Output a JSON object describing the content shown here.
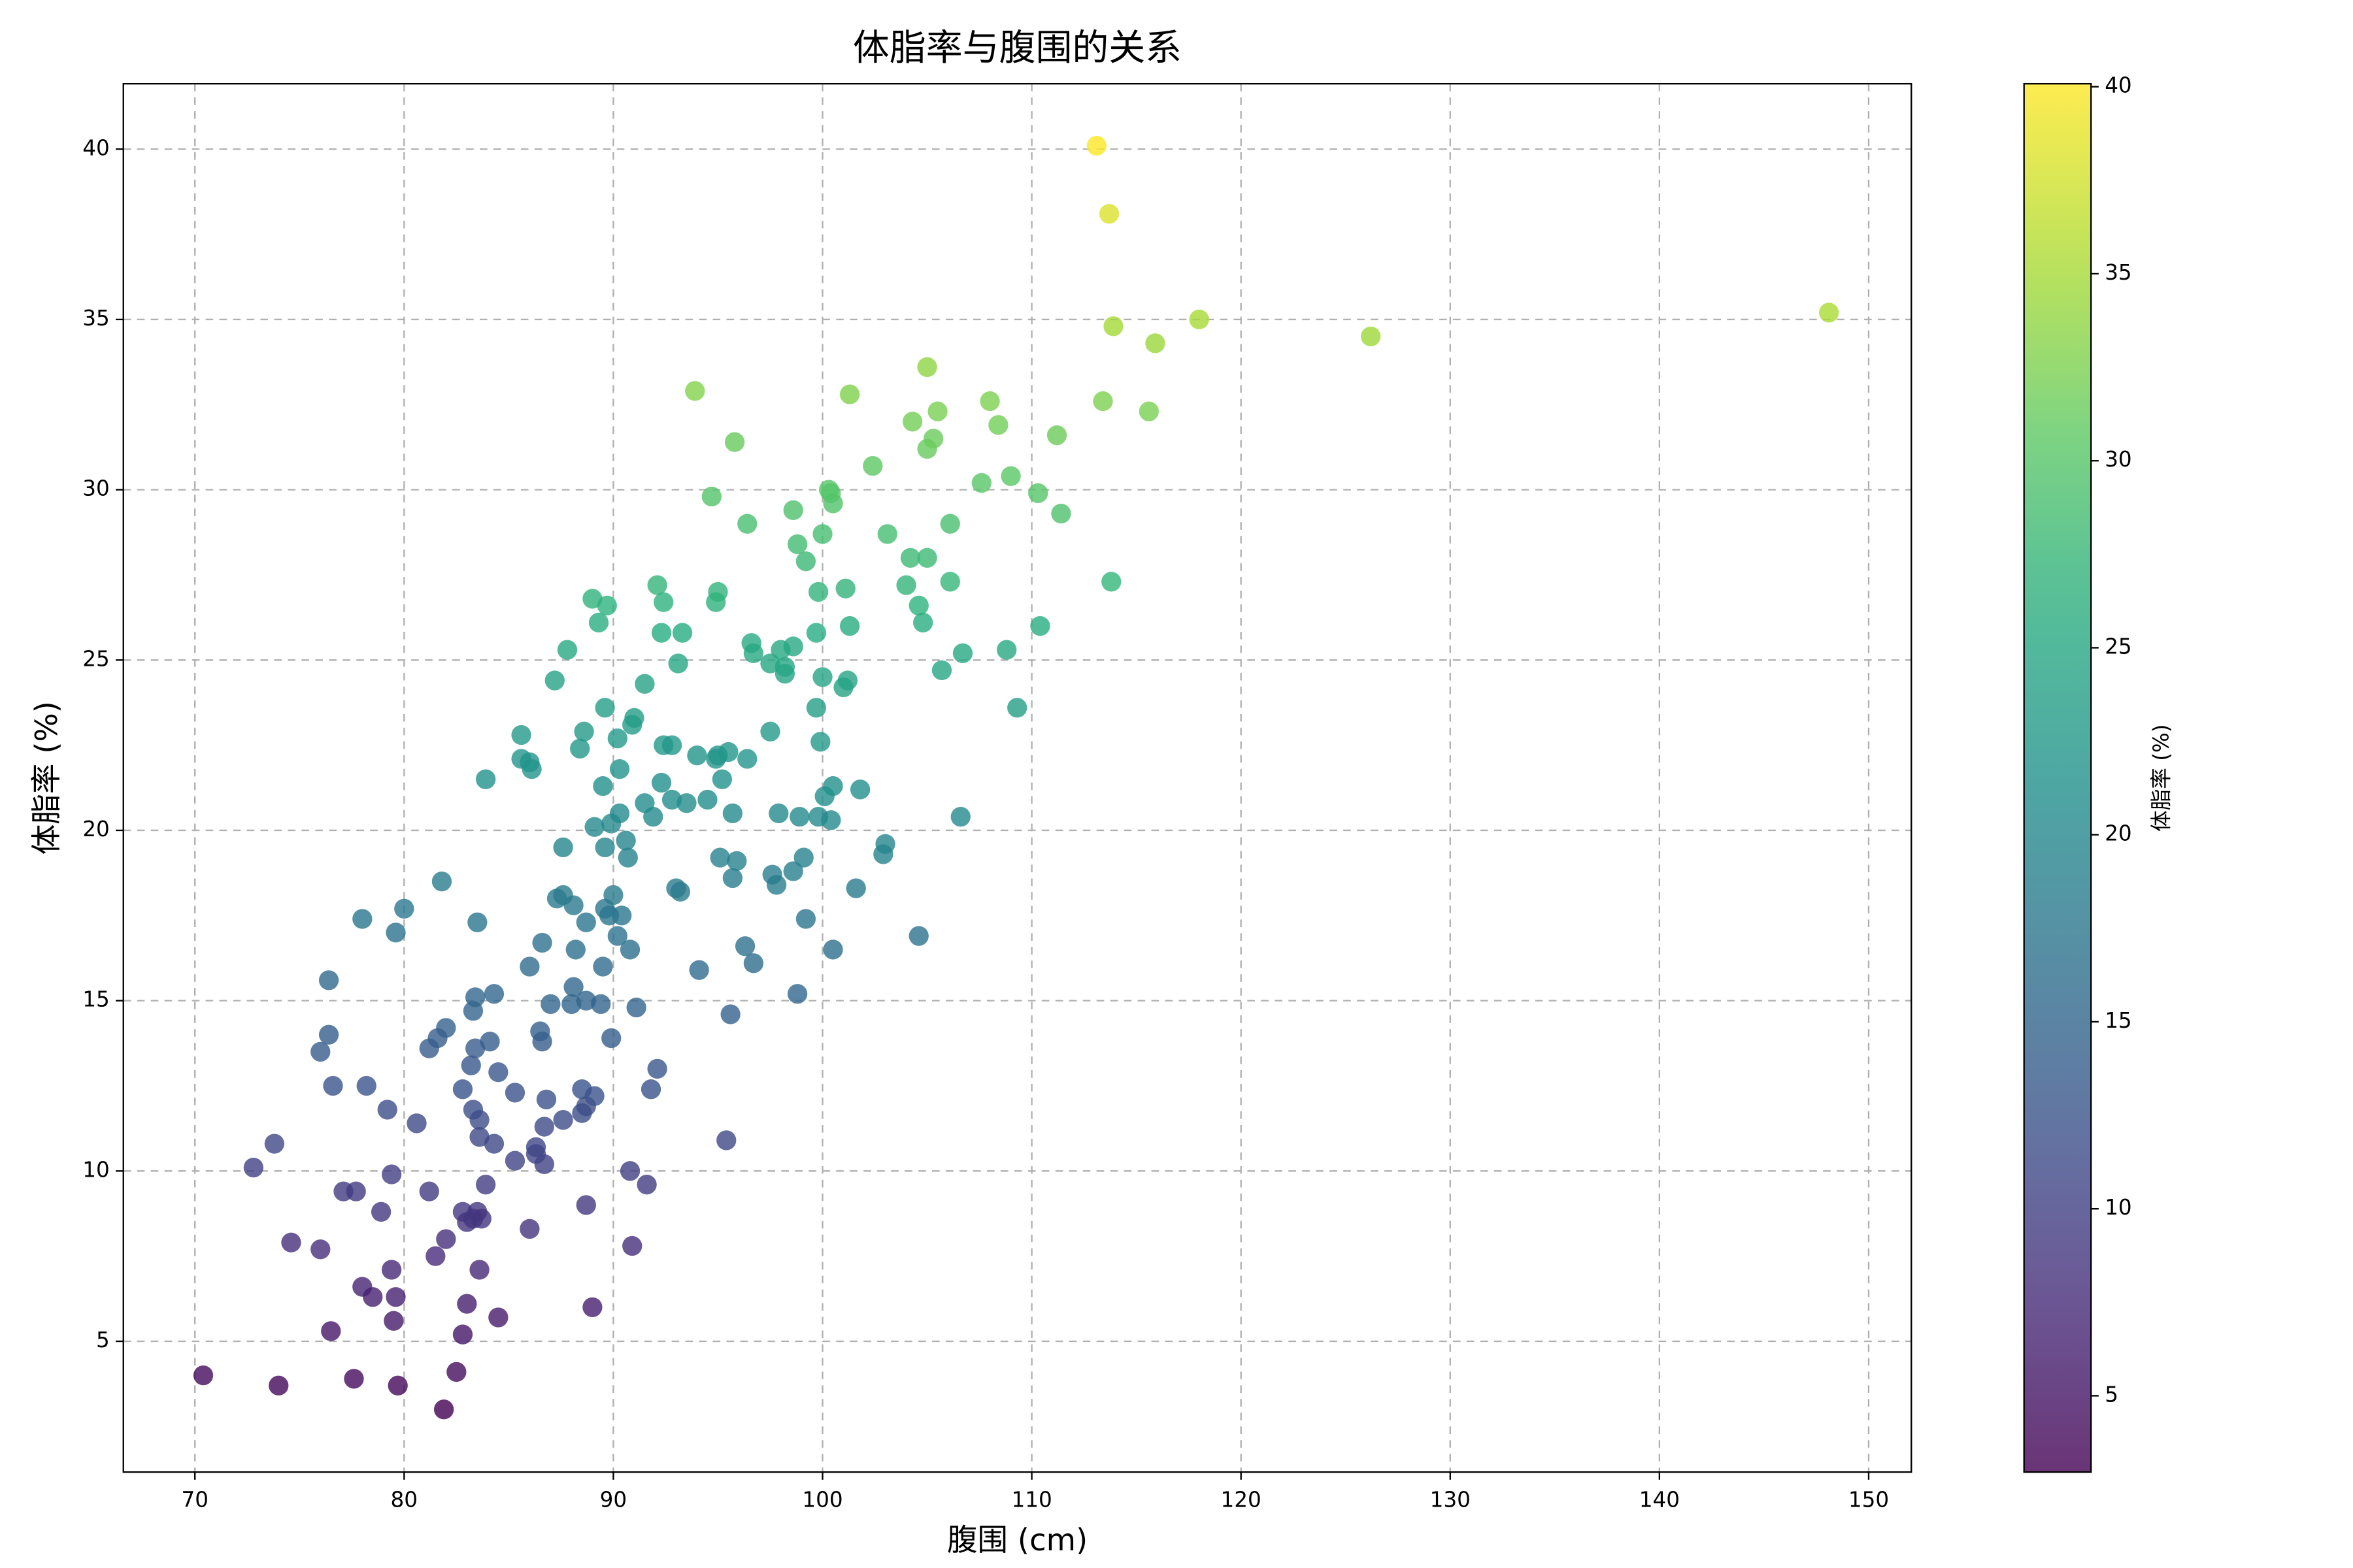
{
  "chart_data": {
    "type": "scatter",
    "title": "体脂率与腹围的关系",
    "x_label": "腹围 (cm)",
    "y_label": "体脂率 (%)",
    "xlim": [
      66.58,
      152.04
    ],
    "ylim": [
      1.16,
      41.92
    ],
    "xticks": [
      70,
      80,
      90,
      100,
      110,
      120,
      130,
      140,
      150
    ],
    "yticks": [
      5,
      10,
      15,
      20,
      25,
      30,
      35,
      40
    ],
    "grid": true,
    "colormap": "viridis",
    "alpha": 0.8,
    "colorbar": {
      "label": "体脂率 (%)",
      "lim": [
        2.96,
        40.08
      ],
      "ticks": [
        5,
        10,
        15,
        20,
        25,
        30,
        35,
        40
      ]
    },
    "x": [
      70.4,
      74.0,
      77.6,
      79.7,
      81.9,
      82.5,
      82.8,
      76.5,
      79.5,
      84.5,
      89.0,
      83.0,
      78.0,
      78.5,
      79.6,
      79.4,
      83.6,
      74.6,
      76.0,
      81.5,
      82.0,
      90.9,
      86.0,
      83.0,
      83.3,
      82.8,
      83.5,
      83.7,
      78.9,
      88.7,
      77.1,
      77.7,
      81.2,
      83.9,
      79.4,
      72.8,
      73.8,
      90.8,
      91.6,
      85.3,
      86.7,
      86.3,
      86.3,
      84.3,
      83.6,
      80.6,
      86.7,
      87.6,
      83.6,
      83.3,
      79.2,
      88.5,
      88.7,
      86.8,
      89.1,
      88.5,
      91.8,
      95.4,
      76.6,
      78.2,
      82.8,
      85.3,
      84.5,
      83.2,
      92.1,
      89.9,
      81.2,
      81.6,
      82.0,
      83.4,
      84.1,
      86.6,
      86.5,
      76.0,
      76.4,
      83.3,
      83.4,
      84.3,
      87.0,
      88.0,
      88.7,
      89.4,
      91.1,
      88.1,
      95.6,
      98.8,
      76.4,
      86.0,
      86.6,
      88.2,
      89.5,
      90.2,
      90.8,
      94.1,
      96.3,
      96.7,
      100.5,
      104.6,
      79.6,
      80.0,
      78.0,
      83.5,
      88.7,
      89.6,
      89.8,
      90.4,
      90.0,
      88.1,
      87.3,
      87.6,
      81.8,
      93.0,
      93.2,
      95.7,
      97.6,
      97.8,
      98.6,
      99.1,
      99.2,
      101.6,
      87.6,
      89.6,
      90.6,
      90.7,
      89.1,
      89.9,
      90.3,
      91.9,
      95.1,
      95.9,
      95.7,
      97.9,
      98.9,
      99.8,
      100.4,
      100.1,
      100.5,
      101.8,
      102.9,
      103.0,
      106.6,
      83.9,
      89.5,
      90.3,
      91.5,
      92.3,
      92.8,
      93.5,
      94.5,
      95.2,
      85.6,
      86.0,
      86.1,
      85.6,
      88.4,
      88.6,
      90.2,
      90.9,
      91.0,
      89.6,
      92.4,
      92.8,
      94.0,
      94.9,
      95.0,
      95.5,
      96.4,
      97.5,
      99.9,
      87.2,
      91.5,
      93.1,
      99.7,
      101.0,
      101.2,
      100.0,
      96.6,
      96.7,
      97.5,
      98.2,
      98.2,
      98.0,
      98.6,
      99.7,
      87.8,
      89.3,
      89.0,
      89.7,
      92.3,
      93.3,
      92.1,
      92.4,
      94.9,
      95.0,
      99.8,
      101.1,
      101.3,
      104.0,
      104.6,
      104.8,
      105.7,
      106.7,
      106.1,
      108.8,
      109.3,
      110.4,
      113.8,
      98.8,
      99.2,
      96.4,
      98.6,
      100.0,
      103.1,
      104.2,
      105.0,
      106.1,
      94.7,
      100.3,
      100.5,
      100.4,
      102.4,
      107.6,
      109.0,
      110.3,
      111.4,
      95.8,
      105.0,
      105.3,
      104.3,
      105.5,
      108.0,
      108.4,
      111.2,
      113.4,
      115.6,
      93.9,
      101.3,
      105.0,
      113.9,
      115.9,
      118.0,
      126.2,
      148.1,
      113.7,
      113.1
    ],
    "y": [
      4.0,
      3.7,
      3.9,
      3.7,
      3.0,
      4.1,
      5.2,
      5.3,
      5.6,
      5.7,
      6.0,
      6.1,
      6.6,
      6.3,
      6.3,
      7.1,
      7.1,
      7.9,
      7.7,
      7.5,
      8.0,
      7.8,
      8.3,
      8.5,
      8.6,
      8.8,
      8.8,
      8.6,
      8.8,
      9.0,
      9.4,
      9.4,
      9.4,
      9.6,
      9.9,
      10.1,
      10.8,
      10.0,
      9.6,
      10.3,
      10.2,
      10.5,
      10.7,
      10.8,
      11.0,
      11.4,
      11.3,
      11.5,
      11.5,
      11.8,
      11.8,
      11.7,
      11.9,
      12.1,
      12.2,
      12.4,
      12.4,
      10.9,
      12.5,
      12.5,
      12.4,
      12.3,
      12.9,
      13.1,
      13.0,
      13.9,
      13.6,
      13.9,
      14.2,
      13.6,
      13.8,
      13.8,
      14.1,
      13.5,
      14.0,
      14.7,
      15.1,
      15.2,
      14.9,
      14.9,
      15.0,
      14.9,
      14.8,
      15.4,
      14.6,
      15.2,
      15.6,
      16.0,
      16.7,
      16.5,
      16.0,
      16.9,
      16.5,
      15.9,
      16.6,
      16.1,
      16.5,
      16.9,
      17.0,
      17.7,
      17.4,
      17.3,
      17.3,
      17.7,
      17.5,
      17.5,
      18.1,
      17.8,
      18.0,
      18.1,
      18.5,
      18.3,
      18.2,
      18.6,
      18.7,
      18.4,
      18.8,
      19.2,
      17.4,
      18.3,
      19.5,
      19.5,
      19.7,
      19.2,
      20.1,
      20.2,
      20.5,
      20.4,
      19.2,
      19.1,
      20.5,
      20.5,
      20.4,
      20.4,
      20.3,
      21.0,
      21.3,
      21.2,
      19.3,
      19.6,
      20.4,
      21.5,
      21.3,
      21.8,
      20.8,
      21.4,
      20.9,
      20.8,
      20.9,
      21.5,
      22.1,
      22.0,
      21.8,
      22.8,
      22.4,
      22.9,
      22.7,
      23.1,
      23.3,
      23.6,
      22.5,
      22.5,
      22.2,
      22.1,
      22.2,
      22.3,
      22.1,
      22.9,
      22.6,
      24.4,
      24.3,
      24.9,
      23.6,
      24.2,
      24.4,
      24.5,
      25.5,
      25.2,
      24.9,
      24.6,
      24.8,
      25.3,
      25.4,
      25.8,
      25.3,
      26.1,
      26.8,
      26.6,
      25.8,
      25.8,
      27.2,
      26.7,
      26.7,
      27.0,
      27.0,
      27.1,
      26.0,
      27.2,
      26.6,
      26.1,
      24.7,
      25.2,
      27.3,
      25.3,
      23.6,
      26.0,
      27.3,
      28.4,
      27.9,
      29.0,
      29.4,
      28.7,
      28.7,
      28.0,
      28.0,
      29.0,
      29.8,
      30.0,
      29.6,
      29.9,
      30.7,
      30.2,
      30.4,
      29.9,
      29.3,
      31.4,
      31.2,
      31.5,
      32.0,
      32.3,
      32.6,
      31.9,
      31.6,
      32.6,
      32.3,
      32.9,
      32.8,
      33.6,
      34.8,
      34.3,
      35.0,
      34.5,
      35.2,
      38.1,
      40.1
    ]
  }
}
